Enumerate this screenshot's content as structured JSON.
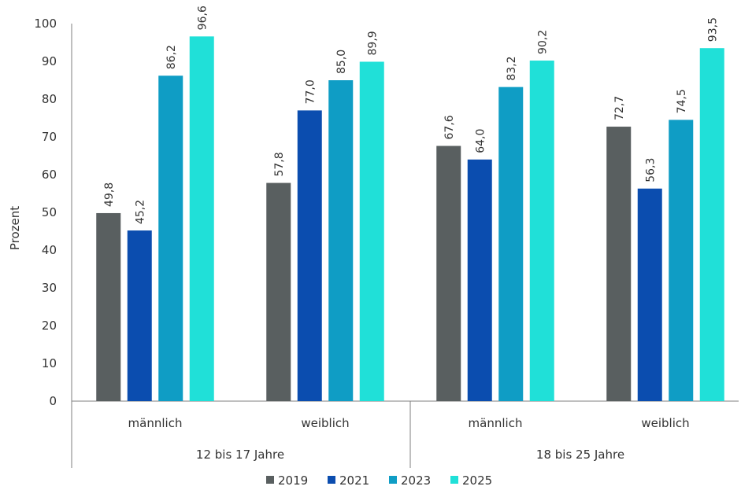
{
  "chart_data": {
    "type": "bar",
    "ylabel": "Prozent",
    "ylim": [
      0,
      100
    ],
    "yticks": [
      0,
      10,
      20,
      30,
      40,
      50,
      60,
      70,
      80,
      90,
      100
    ],
    "grid": false,
    "legend_position": "bottom",
    "groups": [
      {
        "label": "12 bis 17 Jahre",
        "categories": [
          "männlich",
          "weiblich"
        ]
      },
      {
        "label": "18 bis 25 Jahre",
        "categories": [
          "männlich",
          "weiblich"
        ]
      }
    ],
    "categories": [
      "männlich",
      "weiblich",
      "männlich",
      "weiblich"
    ],
    "series": [
      {
        "name": "2019",
        "color": "#595f60",
        "values": [
          49.8,
          57.8,
          67.6,
          72.7
        ],
        "labels": [
          "49,8",
          "57,8",
          "67,6",
          "72,7"
        ]
      },
      {
        "name": "2021",
        "color": "#0b4daf",
        "values": [
          45.2,
          77.0,
          64.0,
          56.3
        ],
        "labels": [
          "45,2",
          "77,0",
          "64,0",
          "56,3"
        ]
      },
      {
        "name": "2023",
        "color": "#0f9dc5",
        "values": [
          86.2,
          85.0,
          83.2,
          74.5
        ],
        "labels": [
          "86,2",
          "85,0",
          "83,2",
          "74,5"
        ]
      },
      {
        "name": "2025",
        "color": "#20e0d8",
        "values": [
          96.6,
          89.9,
          90.2,
          93.5
        ],
        "labels": [
          "96,6",
          "89,9",
          "90,2",
          "93,5"
        ]
      }
    ]
  }
}
